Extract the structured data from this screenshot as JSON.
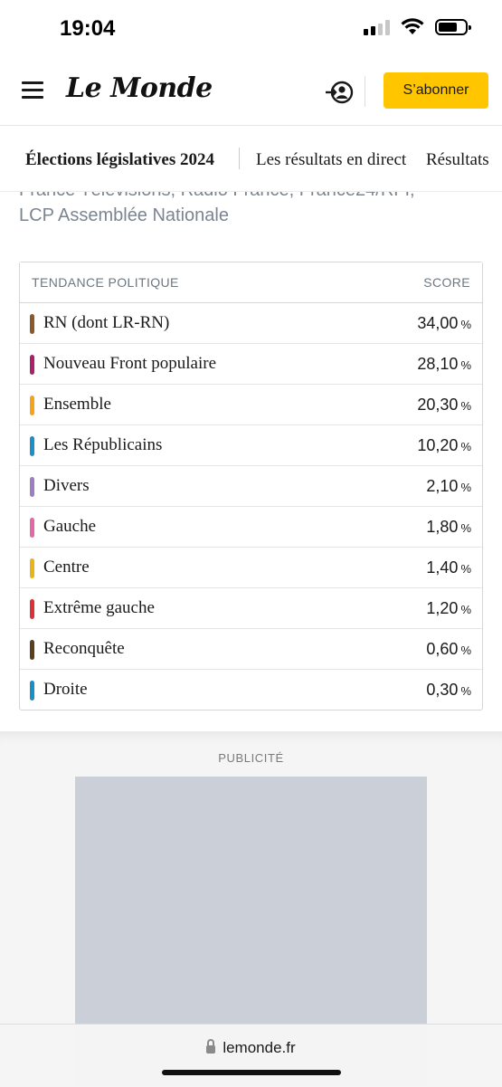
{
  "status_bar": {
    "time": "19:04"
  },
  "header": {
    "logo": "Le Monde",
    "subscribe_label": "S’abonner"
  },
  "subnav": {
    "items": [
      "Élections législatives 2024",
      "Les résultats en direct",
      "Résultats"
    ]
  },
  "intro": {
    "line1": "France Télévisions, Radio France, France24/RFI,",
    "line2": "LCP Assemblée Nationale"
  },
  "results_table": {
    "header_party": "TENDANCE POLITIQUE",
    "header_score": "SCORE",
    "unit": "%",
    "rows": [
      {
        "party": "RN (dont LR-RN)",
        "score": "34,00",
        "color": "#8a5a2b"
      },
      {
        "party": "Nouveau Front populaire",
        "score": "28,10",
        "color": "#a8236a"
      },
      {
        "party": "Ensemble",
        "score": "20,30",
        "color": "#f7a21b"
      },
      {
        "party": "Les Républicains",
        "score": "10,20",
        "color": "#1d8ec8"
      },
      {
        "party": "Divers",
        "score": "2,10",
        "color": "#9b7fc1"
      },
      {
        "party": "Gauche",
        "score": "1,80",
        "color": "#e06aa3"
      },
      {
        "party": "Centre",
        "score": "1,40",
        "color": "#e8b41a"
      },
      {
        "party": "Extrême gauche",
        "score": "1,20",
        "color": "#d9323a"
      },
      {
        "party": "Reconquête",
        "score": "0,60",
        "color": "#5a3e1e"
      },
      {
        "party": "Droite",
        "score": "0,30",
        "color": "#1a8fc4"
      }
    ]
  },
  "ad": {
    "label": "PUBLICITÉ"
  },
  "browser": {
    "url": "lemonde.fr"
  }
}
